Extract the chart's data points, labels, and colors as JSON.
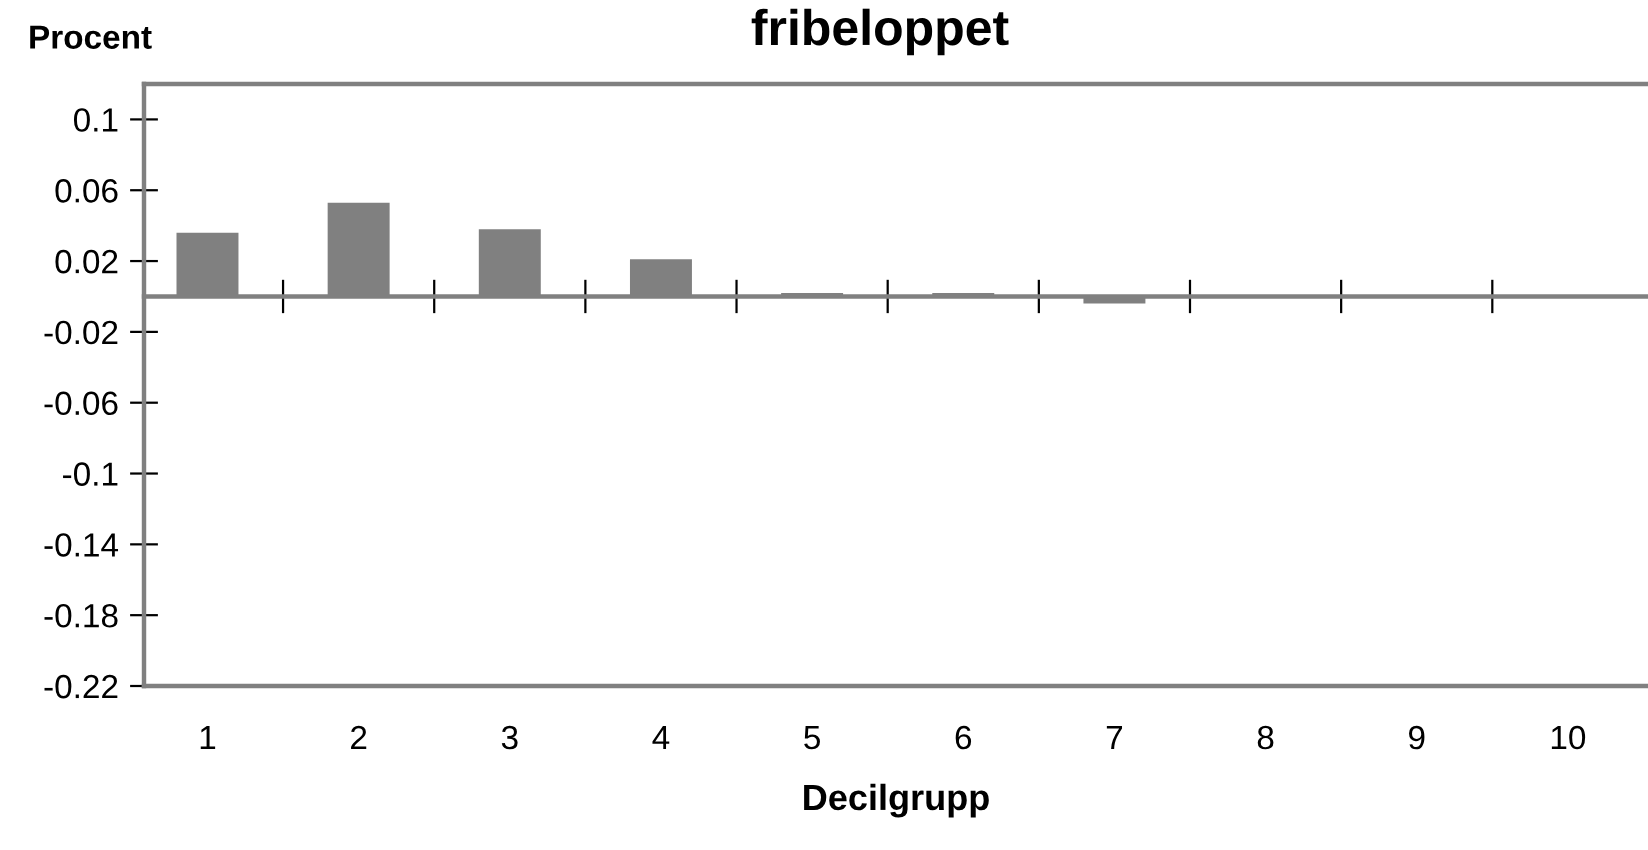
{
  "chart_data": {
    "type": "bar",
    "title": "fribeloppet",
    "xlabel": "Decilgrupp",
    "ylabel": "Procent",
    "categories": [
      "1",
      "2",
      "3",
      "4",
      "5",
      "6",
      "7",
      "8",
      "9",
      "10"
    ],
    "values": [
      0.036,
      0.053,
      0.038,
      0.021,
      0.002,
      0.002,
      -0.004,
      0,
      0,
      0
    ],
    "color": "#808080",
    "ylim": [
      -0.22,
      0.12
    ],
    "yticks": [
      0.1,
      0.06,
      0.02,
      -0.02,
      -0.06,
      -0.1,
      -0.14,
      -0.18,
      -0.22
    ]
  }
}
